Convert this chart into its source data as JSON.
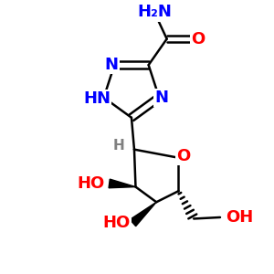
{
  "bg_color": "#ffffff",
  "bond_color": "#000000",
  "N_color": "#0000ff",
  "O_color": "#ff0000",
  "H_color": "#808080",
  "bond_width": 1.8,
  "font_size": 13,
  "xlim": [
    0.05,
    0.95
  ],
  "ylim": [
    0.02,
    1.0
  ]
}
